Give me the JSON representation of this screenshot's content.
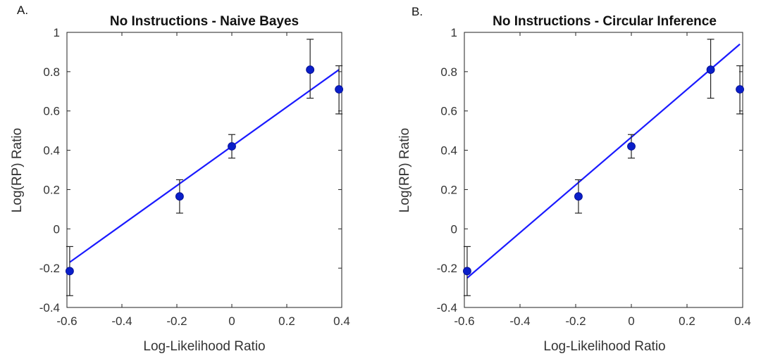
{
  "chart_data": [
    {
      "type": "scatter",
      "panel_label": "A.",
      "title": "No Instructions - Naive Bayes",
      "xlabel": "Log-Likelihood Ratio",
      "ylabel": "Log(RP) Ratio",
      "xlim": [
        -0.6,
        0.4
      ],
      "ylim": [
        -0.4,
        1
      ],
      "xticks": [
        -0.6,
        -0.4,
        -0.2,
        0,
        0.2,
        0.4
      ],
      "xtick_labels": [
        "-0.6",
        "-0.4",
        "-0.2",
        "0",
        "0.2",
        "0.4"
      ],
      "yticks": [
        -0.4,
        -0.2,
        0,
        0.2,
        0.4,
        0.6,
        0.8,
        1
      ],
      "ytick_labels": [
        "-0.4",
        "-0.2",
        "0",
        "0.2",
        "0.4",
        "0.6",
        "0.8",
        "1"
      ],
      "points": [
        {
          "x": -0.59,
          "y": -0.215,
          "err_low": -0.34,
          "err_high": -0.09
        },
        {
          "x": -0.19,
          "y": 0.165,
          "err_low": 0.08,
          "err_high": 0.25
        },
        {
          "x": 0.0,
          "y": 0.42,
          "err_low": 0.36,
          "err_high": 0.48
        },
        {
          "x": 0.285,
          "y": 0.81,
          "err_low": 0.665,
          "err_high": 0.965
        },
        {
          "x": 0.39,
          "y": 0.71,
          "err_low": 0.585,
          "err_high": 0.83
        }
      ],
      "fit_line": {
        "x": [
          -0.59,
          0.39
        ],
        "y": [
          -0.17,
          0.81
        ]
      },
      "colors": {
        "points": "#0a1ec8",
        "line": "#1a1aff",
        "errorbars": "#222222"
      }
    },
    {
      "type": "scatter",
      "panel_label": "B.",
      "title": "No Instructions - Circular Inference",
      "xlabel": "Log-Likelihood Ratio",
      "ylabel": "Log(RP) Ratio",
      "xlim": [
        -0.6,
        0.4
      ],
      "ylim": [
        -0.4,
        1
      ],
      "xticks": [
        -0.6,
        -0.4,
        -0.2,
        0,
        0.2,
        0.4
      ],
      "xtick_labels": [
        "-0.6",
        "-0.4",
        "-0.2",
        "0",
        "0.2",
        "0.4"
      ],
      "yticks": [
        -0.4,
        -0.2,
        0,
        0.2,
        0.4,
        0.6,
        0.8,
        1
      ],
      "ytick_labels": [
        "-0.4",
        "-0.2",
        "0",
        "0.2",
        "0.4",
        "0.6",
        "0.8",
        "1"
      ],
      "points": [
        {
          "x": -0.59,
          "y": -0.215,
          "err_low": -0.34,
          "err_high": -0.09
        },
        {
          "x": -0.19,
          "y": 0.165,
          "err_low": 0.08,
          "err_high": 0.25
        },
        {
          "x": 0.0,
          "y": 0.42,
          "err_low": 0.36,
          "err_high": 0.48
        },
        {
          "x": 0.285,
          "y": 0.81,
          "err_low": 0.665,
          "err_high": 0.965
        },
        {
          "x": 0.39,
          "y": 0.71,
          "err_low": 0.585,
          "err_high": 0.83
        }
      ],
      "fit_line": {
        "x": [
          -0.59,
          0.39
        ],
        "y": [
          -0.25,
          0.94
        ]
      },
      "colors": {
        "points": "#0a1ec8",
        "line": "#1a1aff",
        "errorbars": "#222222"
      }
    }
  ]
}
